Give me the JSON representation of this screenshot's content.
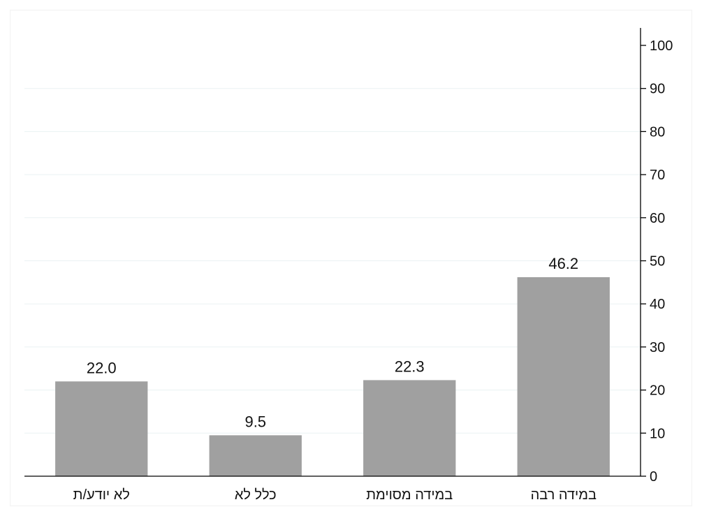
{
  "chart_data": {
    "type": "bar",
    "categories": [
      "במידה רבה",
      "במידה מסוימת",
      "כלל לא",
      "לא יודע/ת"
    ],
    "values": [
      46.2,
      22.3,
      9.5,
      22.0
    ],
    "value_labels": [
      "46.2",
      "22.3",
      "9.5",
      "22.0"
    ],
    "title": "",
    "xlabel": "",
    "ylabel": "",
    "ylim": [
      0,
      100
    ],
    "yticks": [
      0,
      10,
      20,
      30,
      40,
      50,
      60,
      70,
      80,
      90,
      100
    ],
    "y_axis_side": "right",
    "category_order": "right-to-left",
    "grid": true,
    "bar_color": "#a0a0a0"
  }
}
